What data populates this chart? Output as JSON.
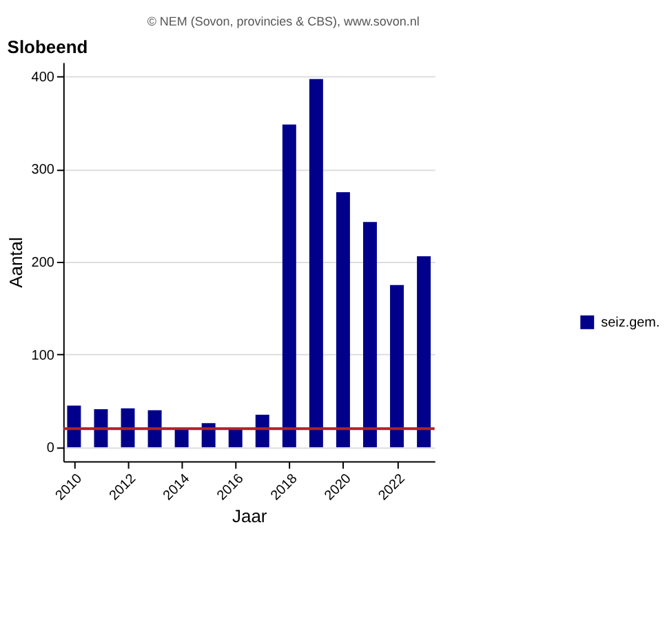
{
  "chart_data": {
    "type": "bar",
    "title": "Slobeend",
    "xlabel": "Jaar",
    "ylabel": "Aantal",
    "annotations": [
      "© NEM (Sovon, provincies & CBS), www.sovon.nl"
    ],
    "x": [
      2010,
      2011,
      2012,
      2013,
      2014,
      2015,
      2016,
      2017,
      2018,
      2019,
      2020,
      2021,
      2022,
      2023
    ],
    "series": [
      {
        "name": "seiz.gem.",
        "color": "#00008b",
        "values": [
          45,
          41,
          42,
          40,
          21,
          26,
          21,
          35,
          348,
          397,
          275,
          243,
          175,
          206
        ]
      }
    ],
    "xlim": [
      2009.6,
      2023.4
    ],
    "xticks": [
      2010,
      2012,
      2014,
      2016,
      2018,
      2020,
      2022
    ],
    "ylim": [
      -15,
      415
    ],
    "yticks": [
      0,
      100,
      200,
      300,
      400
    ],
    "ref_lines": [
      {
        "axis": "y",
        "value": 20,
        "color": "#b22222"
      }
    ],
    "grid": "y",
    "legend": "right"
  }
}
